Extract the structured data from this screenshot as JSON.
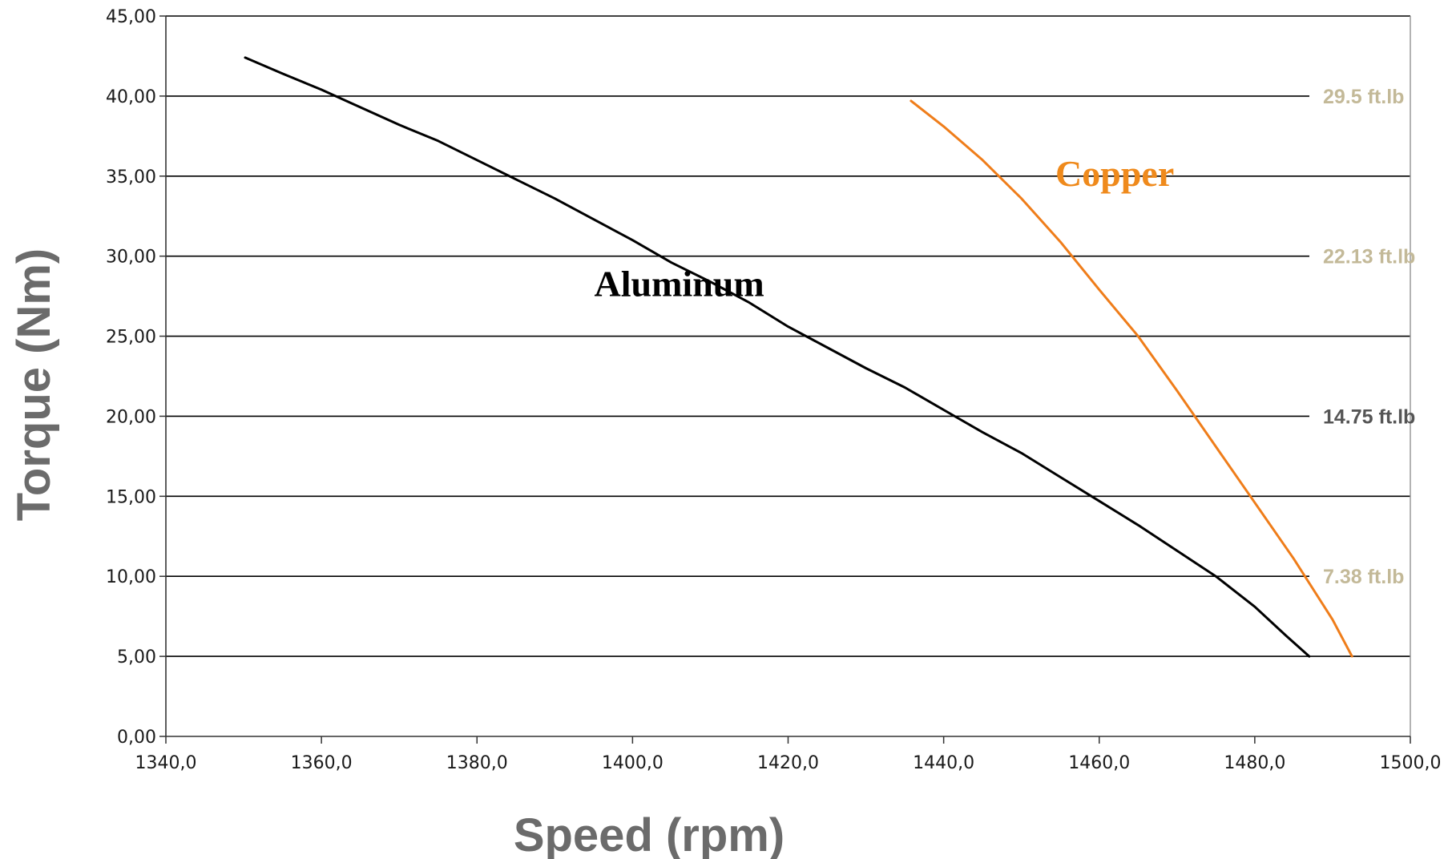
{
  "chart_data": {
    "type": "line",
    "title": "",
    "xlabel": "Speed (rpm)",
    "ylabel": "Torque (Nm)",
    "xlim": [
      1340,
      1500
    ],
    "ylim": [
      0,
      45
    ],
    "x_ticks": [
      1340,
      1360,
      1380,
      1400,
      1420,
      1440,
      1460,
      1480,
      1500
    ],
    "y_ticks": [
      0,
      5,
      10,
      15,
      20,
      25,
      30,
      35,
      40,
      45
    ],
    "x_tick_labels": [
      "1340,0",
      "1360,0",
      "1380,0",
      "1400,0",
      "1420,0",
      "1440,0",
      "1460,0",
      "1480,0",
      "1500,0"
    ],
    "y_tick_labels": [
      "0,00",
      "5,00",
      "10,00",
      "15,00",
      "20,00",
      "25,00",
      "30,00",
      "35,00",
      "40,00",
      "45,00"
    ],
    "grid": "horizontal",
    "legend": "none",
    "series": [
      {
        "name": "Aluminum",
        "color": "#000000",
        "x": [
          1350.2,
          1355,
          1360,
          1365,
          1370,
          1375,
          1380,
          1385,
          1390,
          1395,
          1400,
          1405,
          1410,
          1415,
          1420,
          1425,
          1430,
          1435,
          1440,
          1445,
          1450,
          1455,
          1460,
          1465,
          1470,
          1475,
          1480,
          1484,
          1487
        ],
        "y": [
          42.4,
          41.4,
          40.4,
          39.3,
          38.2,
          37.2,
          36.0,
          34.8,
          33.6,
          32.3,
          31.0,
          29.6,
          28.4,
          27.1,
          25.6,
          24.3,
          23.0,
          21.8,
          20.4,
          19.0,
          17.7,
          16.2,
          14.7,
          13.2,
          11.6,
          10.0,
          8.1,
          6.3,
          5.0
        ]
      },
      {
        "name": "Copper",
        "color": "#ef7d1a",
        "x": [
          1435.8,
          1440,
          1445,
          1450,
          1455,
          1460,
          1465,
          1470,
          1475,
          1480,
          1485,
          1490,
          1492.5
        ],
        "y": [
          39.7,
          38.1,
          36.0,
          33.6,
          30.9,
          27.9,
          25.0,
          21.6,
          18.1,
          14.6,
          11.1,
          7.3,
          5.0
        ]
      }
    ],
    "annotations": [
      {
        "text": "29.5 ft.lb",
        "y": 40,
        "color": "#c3b998"
      },
      {
        "text": "22.13 ft.lb",
        "y": 30,
        "color": "#c3b998"
      },
      {
        "text": "14.75 ft.lb",
        "y": 20,
        "color": "#555555"
      },
      {
        "text": "7.38 ft.lb",
        "y": 10,
        "color": "#c3b998"
      }
    ],
    "series_labels": [
      {
        "text": "Aluminum",
        "x": 1406,
        "y": 27.5,
        "color": "#000000"
      },
      {
        "text": "Copper",
        "x": 1462,
        "y": 34.4,
        "color": "#ef8a1c"
      }
    ]
  }
}
